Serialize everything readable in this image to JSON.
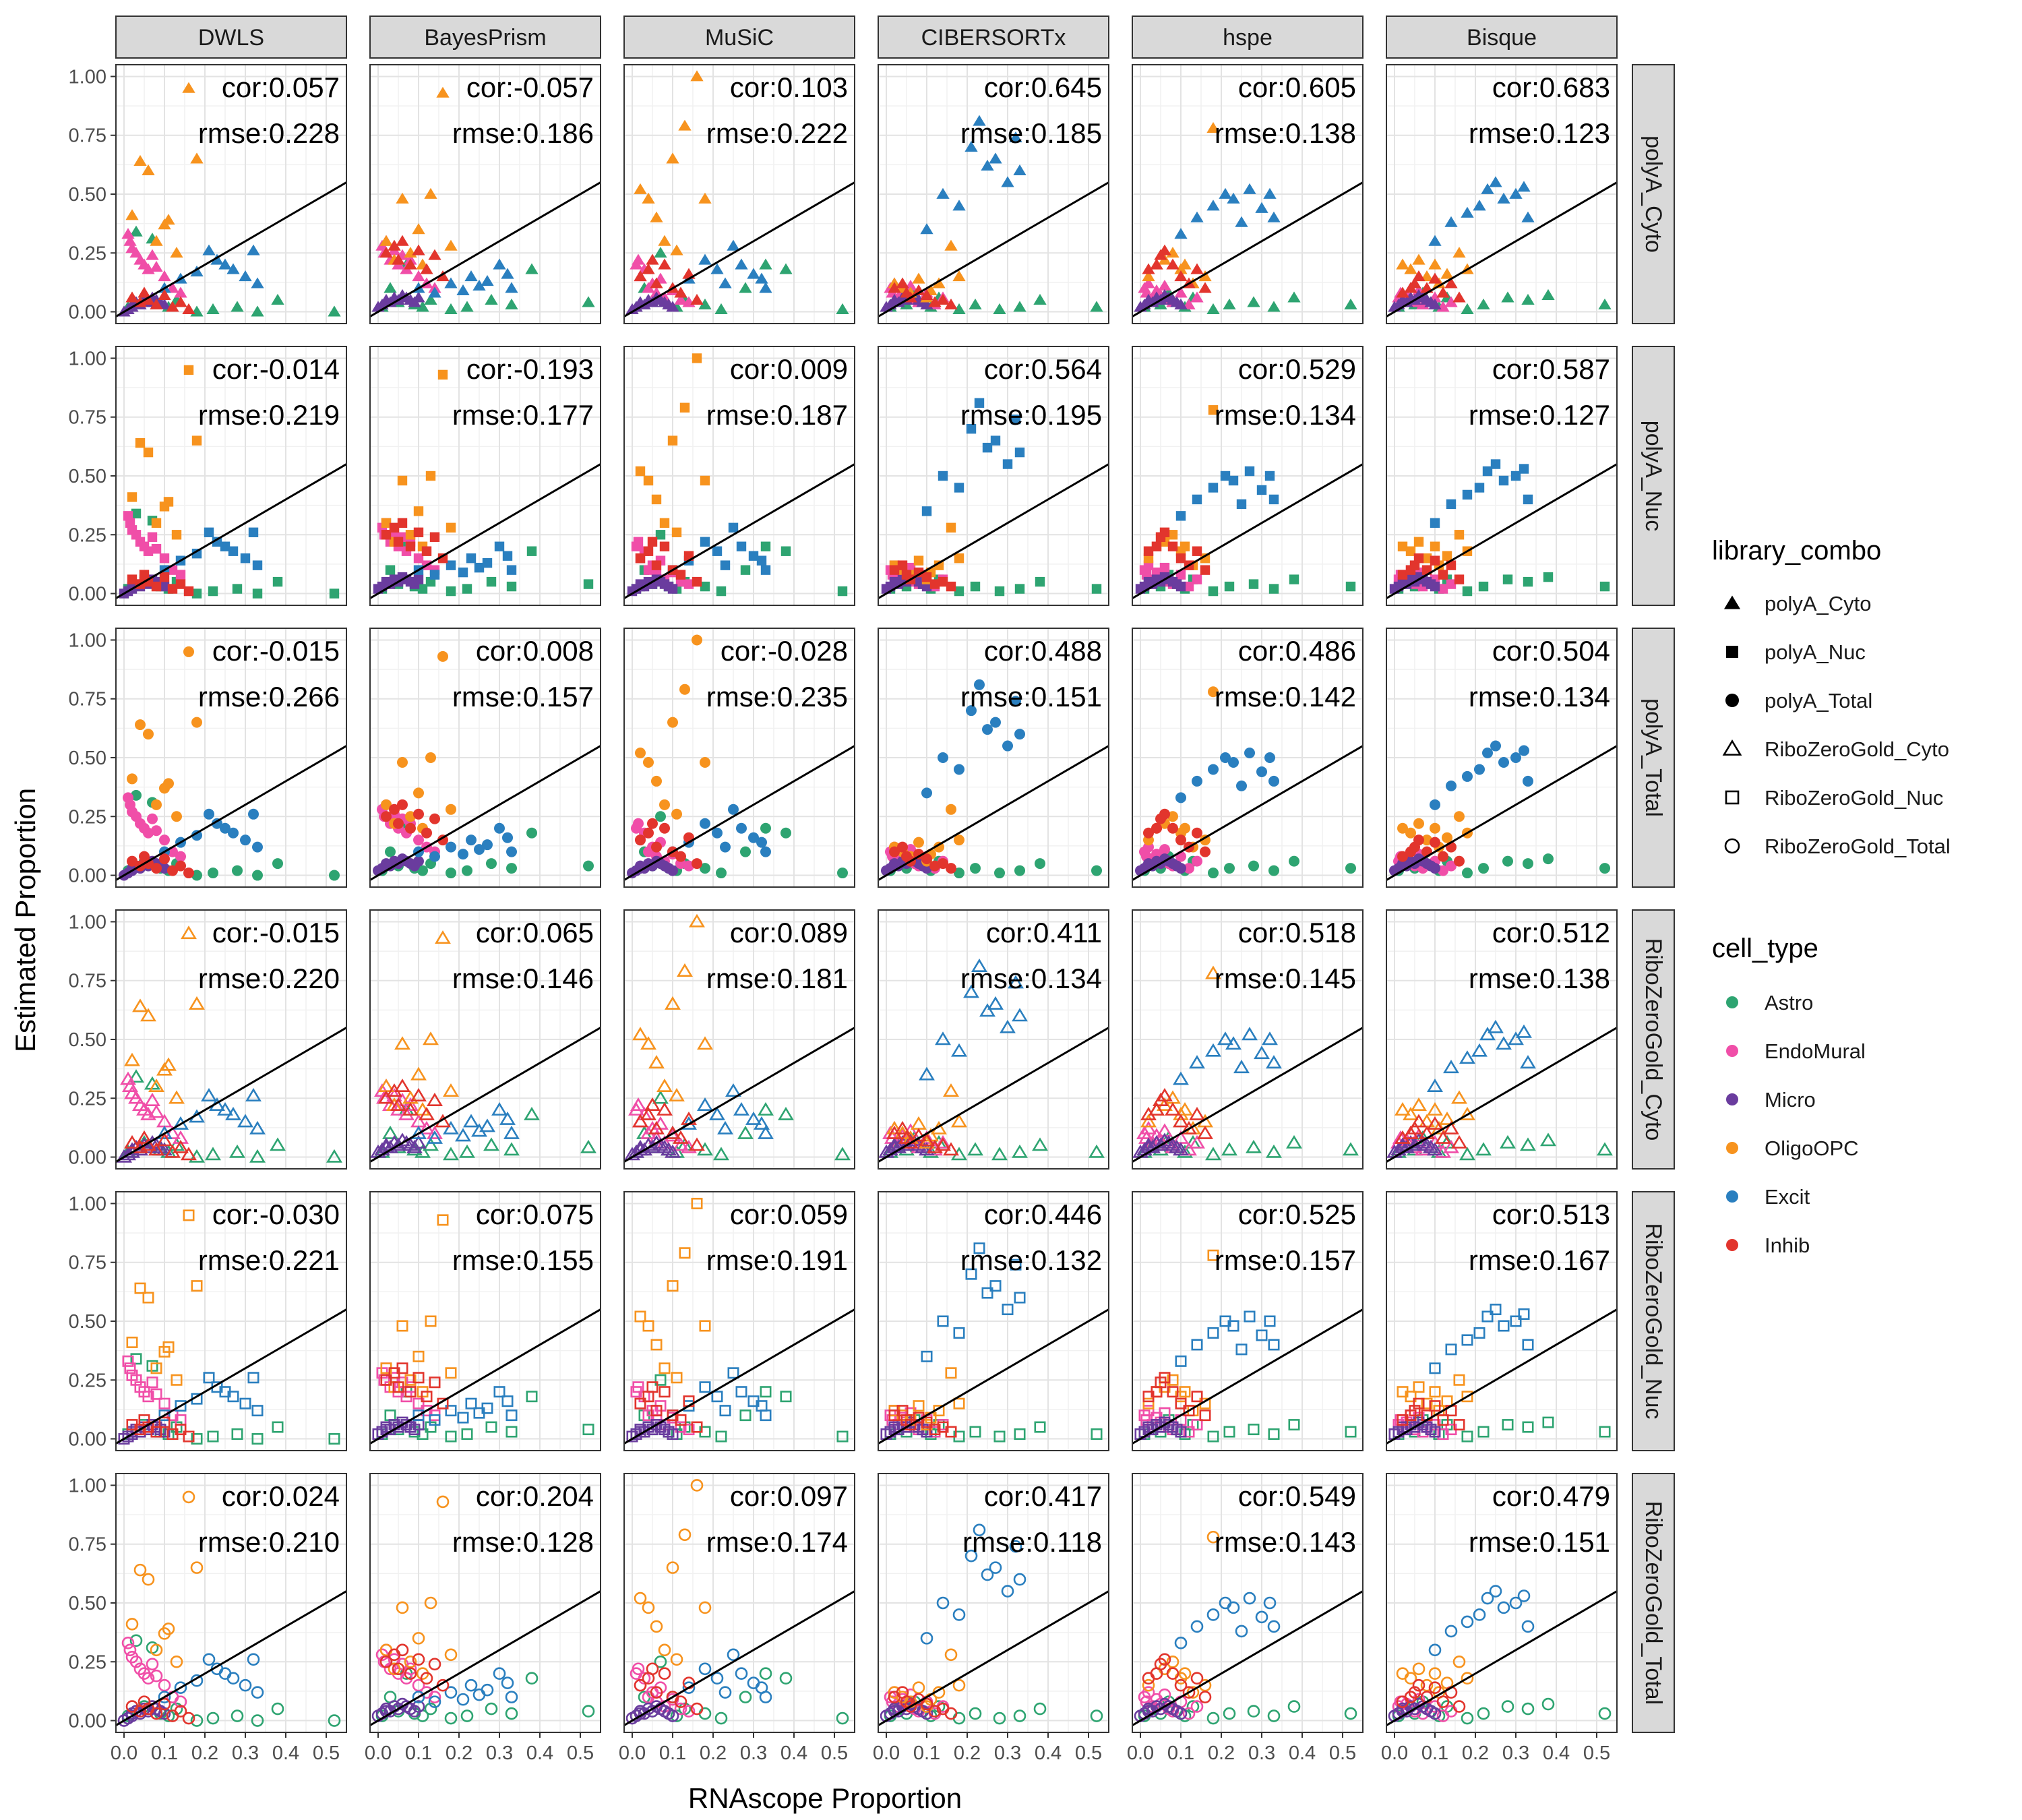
{
  "chart_data": {
    "type": "scatter",
    "layout": "facet-grid",
    "xlabel": "RNAscope Proportion",
    "ylabel": "Estimated Proportion",
    "xlim": [
      -0.02,
      0.55
    ],
    "ylim": [
      -0.05,
      1.05
    ],
    "x_ticks": [
      "0.0",
      "0.1",
      "0.2",
      "0.3",
      "0.4",
      "0.5"
    ],
    "x_tick_values": [
      0,
      0.1,
      0.2,
      0.3,
      0.4,
      0.5
    ],
    "y_ticks": [
      "0.00",
      "0.25",
      "0.50",
      "0.75",
      "1.00"
    ],
    "y_tick_values": [
      0,
      0.25,
      0.5,
      0.75,
      1.0
    ],
    "grid": true,
    "reference_line": {
      "intercept": 0,
      "slope": 1
    },
    "columns": [
      "DWLS",
      "BayesPrism",
      "MuSiC",
      "CIBERSORTx",
      "hspe",
      "Bisque"
    ],
    "rows": [
      "polyA_Cyto",
      "polyA_Nuc",
      "polyA_Total",
      "RiboZeroGold_Cyto",
      "RiboZeroGold_Nuc",
      "RiboZeroGold_Total"
    ],
    "stats": [
      [
        {
          "cor": "cor:0.057",
          "rmse": "rmse:0.228"
        },
        {
          "cor": "cor:-0.057",
          "rmse": "rmse:0.186"
        },
        {
          "cor": "cor:0.103",
          "rmse": "rmse:0.222"
        },
        {
          "cor": "cor:0.645",
          "rmse": "rmse:0.185"
        },
        {
          "cor": "cor:0.605",
          "rmse": "rmse:0.138"
        },
        {
          "cor": "cor:0.683",
          "rmse": "rmse:0.123"
        }
      ],
      [
        {
          "cor": "cor:-0.014",
          "rmse": "rmse:0.219"
        },
        {
          "cor": "cor:-0.193",
          "rmse": "rmse:0.177"
        },
        {
          "cor": "cor:0.009",
          "rmse": "rmse:0.187"
        },
        {
          "cor": "cor:0.564",
          "rmse": "rmse:0.195"
        },
        {
          "cor": "cor:0.529",
          "rmse": "rmse:0.134"
        },
        {
          "cor": "cor:0.587",
          "rmse": "rmse:0.127"
        }
      ],
      [
        {
          "cor": "cor:-0.015",
          "rmse": "rmse:0.266"
        },
        {
          "cor": "cor:0.008",
          "rmse": "rmse:0.157"
        },
        {
          "cor": "cor:-0.028",
          "rmse": "rmse:0.235"
        },
        {
          "cor": "cor:0.488",
          "rmse": "rmse:0.151"
        },
        {
          "cor": "cor:0.486",
          "rmse": "rmse:0.142"
        },
        {
          "cor": "cor:0.504",
          "rmse": "rmse:0.134"
        }
      ],
      [
        {
          "cor": "cor:-0.015",
          "rmse": "rmse:0.220"
        },
        {
          "cor": "cor:0.065",
          "rmse": "rmse:0.146"
        },
        {
          "cor": "cor:0.089",
          "rmse": "rmse:0.181"
        },
        {
          "cor": "cor:0.411",
          "rmse": "rmse:0.134"
        },
        {
          "cor": "cor:0.518",
          "rmse": "rmse:0.145"
        },
        {
          "cor": "cor:0.512",
          "rmse": "rmse:0.138"
        }
      ],
      [
        {
          "cor": "cor:-0.030",
          "rmse": "rmse:0.221"
        },
        {
          "cor": "cor:0.075",
          "rmse": "rmse:0.155"
        },
        {
          "cor": "cor:0.059",
          "rmse": "rmse:0.191"
        },
        {
          "cor": "cor:0.446",
          "rmse": "rmse:0.132"
        },
        {
          "cor": "cor:0.525",
          "rmse": "rmse:0.157"
        },
        {
          "cor": "cor:0.513",
          "rmse": "rmse:0.167"
        }
      ],
      [
        {
          "cor": "cor:0.024",
          "rmse": "rmse:0.210"
        },
        {
          "cor": "cor:0.204",
          "rmse": "rmse:0.128"
        },
        {
          "cor": "cor:0.097",
          "rmse": "rmse:0.174"
        },
        {
          "cor": "cor:0.417",
          "rmse": "rmse:0.118"
        },
        {
          "cor": "cor:0.549",
          "rmse": "rmse:0.143"
        },
        {
          "cor": "cor:0.479",
          "rmse": "rmse:0.151"
        }
      ]
    ],
    "legend": {
      "placement": "right",
      "shape_title": "library_combo",
      "shapes": [
        {
          "label": "polyA_Cyto",
          "shape": "triangle",
          "filled": true
        },
        {
          "label": "polyA_Nuc",
          "shape": "square",
          "filled": true
        },
        {
          "label": "polyA_Total",
          "shape": "circle",
          "filled": true
        },
        {
          "label": "RiboZeroGold_Cyto",
          "shape": "triangle",
          "filled": false
        },
        {
          "label": "RiboZeroGold_Nuc",
          "shape": "square",
          "filled": false
        },
        {
          "label": "RiboZeroGold_Total",
          "shape": "circle",
          "filled": false
        }
      ],
      "color_title": "cell_type",
      "colors": [
        {
          "label": "Astro",
          "color": "#2EA471"
        },
        {
          "label": "EndoMural",
          "color": "#F04EA8"
        },
        {
          "label": "Micro",
          "color": "#6A3C9E"
        },
        {
          "label": "OligoOPC",
          "color": "#F7931E"
        },
        {
          "label": "Excit",
          "color": "#2A7FBF"
        },
        {
          "label": "Inhib",
          "color": "#E2352D"
        }
      ]
    },
    "rnascope_x": {
      "Astro": [
        0.01,
        0.03,
        0.05,
        0.07,
        0.09,
        0.11,
        0.13,
        0.18,
        0.22,
        0.28,
        0.33,
        0.38,
        0.52
      ],
      "EndoMural": [
        0.01,
        0.015,
        0.02,
        0.03,
        0.04,
        0.05,
        0.06,
        0.07,
        0.08,
        0.1,
        0.12,
        0.14
      ],
      "Micro": [
        0.0,
        0.01,
        0.02,
        0.02,
        0.03,
        0.04,
        0.05,
        0.06,
        0.07,
        0.08,
        0.09,
        0.1
      ],
      "OligoOPC": [
        0.02,
        0.04,
        0.06,
        0.08,
        0.1,
        0.11,
        0.13,
        0.16,
        0.18
      ],
      "Excit": [
        0.1,
        0.14,
        0.18,
        0.21,
        0.23,
        0.25,
        0.27,
        0.3,
        0.32,
        0.33
      ],
      "Inhib": [
        0.02,
        0.04,
        0.05,
        0.06,
        0.08,
        0.1,
        0.12,
        0.14,
        0.16
      ]
    },
    "estimated_y": {
      "DWLS": {
        "Astro": [
          0.02,
          0.34,
          0.06,
          0.31,
          0.03,
          0.02,
          0.05,
          0.0,
          0.01,
          0.02,
          0.0,
          0.05,
          0.0
        ],
        "EndoMural": [
          0.33,
          0.3,
          0.27,
          0.25,
          0.22,
          0.2,
          0.18,
          0.24,
          0.19,
          0.15,
          0.1,
          0.08
        ],
        "Micro": [
          0.0,
          0.01,
          0.02,
          0.03,
          0.04,
          0.03,
          0.05,
          0.04,
          0.06,
          0.05,
          0.04,
          0.03
        ],
        "OligoOPC": [
          0.41,
          0.64,
          0.6,
          0.3,
          0.37,
          0.39,
          0.25,
          0.95,
          0.65
        ],
        "Excit": [
          0.1,
          0.14,
          0.17,
          0.26,
          0.22,
          0.2,
          0.18,
          0.15,
          0.26,
          0.12
        ],
        "Inhib": [
          0.06,
          0.04,
          0.08,
          0.05,
          0.03,
          0.07,
          0.02,
          0.04,
          0.01
        ]
      },
      "BayesPrism": {
        "Astro": [
          0.02,
          0.1,
          0.04,
          0.2,
          0.03,
          0.02,
          0.05,
          0.01,
          0.02,
          0.05,
          0.03,
          0.18,
          0.04
        ],
        "EndoMural": [
          0.28,
          0.25,
          0.3,
          0.22,
          0.26,
          0.2,
          0.24,
          0.18,
          0.22,
          0.15,
          0.12,
          0.1
        ],
        "Micro": [
          0.02,
          0.03,
          0.04,
          0.05,
          0.04,
          0.06,
          0.05,
          0.07,
          0.06,
          0.05,
          0.04,
          0.06
        ],
        "OligoOPC": [
          0.3,
          0.22,
          0.48,
          0.25,
          0.35,
          0.2,
          0.5,
          0.93,
          0.28
        ],
        "Excit": [
          0.1,
          0.08,
          0.12,
          0.09,
          0.15,
          0.11,
          0.13,
          0.2,
          0.16,
          0.1
        ],
        "Inhib": [
          0.25,
          0.28,
          0.22,
          0.3,
          0.2,
          0.26,
          0.18,
          0.24,
          0.15
        ]
      },
      "MuSiC": {
        "Astro": [
          0.02,
          0.1,
          0.04,
          0.25,
          0.03,
          0.02,
          0.05,
          0.03,
          0.01,
          0.1,
          0.2,
          0.18,
          0.01
        ],
        "EndoMural": [
          0.2,
          0.22,
          0.15,
          0.18,
          0.1,
          0.12,
          0.08,
          0.14,
          0.06,
          0.09,
          0.05,
          0.04
        ],
        "Micro": [
          0.01,
          0.02,
          0.03,
          0.04,
          0.03,
          0.05,
          0.04,
          0.06,
          0.05,
          0.04,
          0.03,
          0.02
        ],
        "OligoOPC": [
          0.52,
          0.48,
          0.4,
          0.3,
          0.65,
          0.26,
          0.79,
          1.0,
          0.48
        ],
        "Excit": [
          0.1,
          0.14,
          0.22,
          0.18,
          0.12,
          0.28,
          0.2,
          0.16,
          0.14,
          0.1
        ],
        "Inhib": [
          0.15,
          0.18,
          0.22,
          0.12,
          0.2,
          0.1,
          0.08,
          0.16,
          0.05
        ]
      },
      "CIBERSORTx": {
        "Astro": [
          0.02,
          0.05,
          0.03,
          0.08,
          0.04,
          0.02,
          0.06,
          0.01,
          0.03,
          0.01,
          0.02,
          0.05,
          0.02
        ],
        "EndoMural": [
          0.1,
          0.08,
          0.12,
          0.06,
          0.09,
          0.07,
          0.11,
          0.05,
          0.04,
          0.08,
          0.03,
          0.06
        ],
        "Micro": [
          0.02,
          0.03,
          0.04,
          0.05,
          0.04,
          0.06,
          0.05,
          0.07,
          0.06,
          0.05,
          0.04,
          0.03
        ],
        "OligoOPC": [
          0.12,
          0.1,
          0.08,
          0.14,
          0.06,
          0.09,
          0.12,
          0.28,
          0.15
        ],
        "Excit": [
          0.35,
          0.5,
          0.45,
          0.7,
          0.81,
          0.62,
          0.65,
          0.55,
          0.74,
          0.6
        ],
        "Inhib": [
          0.1,
          0.12,
          0.08,
          0.06,
          0.09,
          0.07,
          0.04,
          0.05,
          0.03
        ]
      },
      "hspe": {
        "Astro": [
          0.02,
          0.05,
          0.03,
          0.08,
          0.04,
          0.02,
          0.06,
          0.01,
          0.03,
          0.04,
          0.02,
          0.06,
          0.03
        ],
        "EndoMural": [
          0.1,
          0.08,
          0.12,
          0.06,
          0.09,
          0.07,
          0.11,
          0.05,
          0.04,
          0.08,
          0.03,
          0.06
        ],
        "Micro": [
          0.02,
          0.03,
          0.04,
          0.05,
          0.04,
          0.06,
          0.05,
          0.07,
          0.06,
          0.05,
          0.04,
          0.03
        ],
        "OligoOPC": [
          0.15,
          0.2,
          0.22,
          0.25,
          0.18,
          0.2,
          0.12,
          0.15,
          0.78
        ],
        "Excit": [
          0.33,
          0.4,
          0.45,
          0.5,
          0.48,
          0.38,
          0.52,
          0.44,
          0.5,
          0.4
        ],
        "Inhib": [
          0.18,
          0.2,
          0.24,
          0.26,
          0.2,
          0.15,
          0.12,
          0.18,
          0.1
        ]
      },
      "Bisque": {
        "Astro": [
          0.02,
          0.05,
          0.03,
          0.08,
          0.04,
          0.02,
          0.06,
          0.01,
          0.03,
          0.06,
          0.05,
          0.07,
          0.03
        ],
        "EndoMural": [
          0.06,
          0.08,
          0.05,
          0.07,
          0.1,
          0.04,
          0.09,
          0.03,
          0.05,
          0.06,
          0.02,
          0.04
        ],
        "Micro": [
          0.02,
          0.03,
          0.04,
          0.05,
          0.04,
          0.06,
          0.05,
          0.07,
          0.06,
          0.05,
          0.04,
          0.03
        ],
        "OligoOPC": [
          0.2,
          0.18,
          0.22,
          0.15,
          0.2,
          0.12,
          0.16,
          0.25,
          0.18
        ],
        "Excit": [
          0.3,
          0.38,
          0.42,
          0.45,
          0.52,
          0.55,
          0.48,
          0.5,
          0.53,
          0.4
        ],
        "Inhib": [
          0.08,
          0.1,
          0.12,
          0.15,
          0.1,
          0.14,
          0.08,
          0.12,
          0.06
        ]
      }
    }
  }
}
